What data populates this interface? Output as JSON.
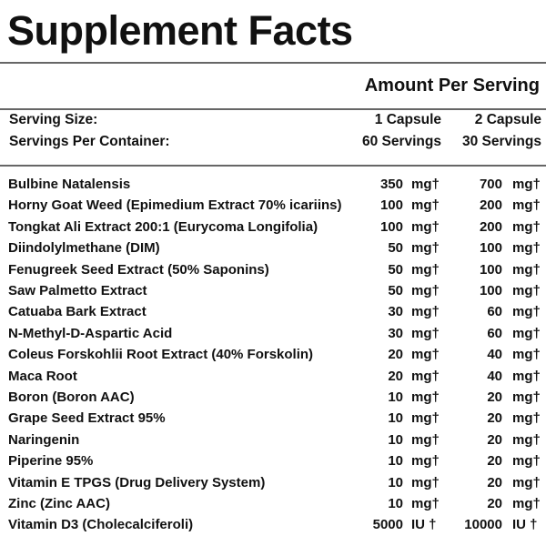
{
  "title": "Supplement Facts",
  "amount_header": "Amount Per Serving",
  "serving_size": {
    "label": "Serving Size:",
    "col1": "1 Capsule",
    "col2": "2 Capsule"
  },
  "servings_per_container": {
    "label": "Servings Per Container:",
    "col1": "60 Servings",
    "col2": "30 Servings"
  },
  "ingredients": [
    {
      "name": "Bulbine Natalensis",
      "a1": "350",
      "u1": "mg†",
      "a2": "700",
      "u2": "mg†"
    },
    {
      "name": "Horny Goat Weed (Epimedium Extract 70% icariins)",
      "a1": "100",
      "u1": "mg†",
      "a2": "200",
      "u2": "mg†"
    },
    {
      "name": "Tongkat Ali Extract 200:1 (Eurycoma Longifolia)",
      "a1": "100",
      "u1": "mg†",
      "a2": "200",
      "u2": "mg†"
    },
    {
      "name": "Diindolylmethane (DIM)",
      "a1": "50",
      "u1": "mg†",
      "a2": "100",
      "u2": "mg†"
    },
    {
      "name": "Fenugreek Seed Extract (50% Saponins)",
      "a1": "50",
      "u1": "mg†",
      "a2": "100",
      "u2": "mg†"
    },
    {
      "name": "Saw Palmetto Extract",
      "a1": "50",
      "u1": "mg†",
      "a2": "100",
      "u2": "mg†"
    },
    {
      "name": "Catuaba Bark Extract",
      "a1": "30",
      "u1": "mg†",
      "a2": "60",
      "u2": "mg†"
    },
    {
      "name": "N-Methyl-D-Aspartic Acid",
      "a1": "30",
      "u1": "mg†",
      "a2": "60",
      "u2": "mg†"
    },
    {
      "name": "Coleus Forskohlii Root Extract (40% Forskolin)",
      "a1": "20",
      "u1": "mg†",
      "a2": "40",
      "u2": "mg†"
    },
    {
      "name": "Maca Root",
      "a1": "20",
      "u1": "mg†",
      "a2": "40",
      "u2": "mg†"
    },
    {
      "name": "Boron (Boron AAC)",
      "a1": "10",
      "u1": "mg†",
      "a2": "20",
      "u2": "mg†"
    },
    {
      "name": "Grape Seed Extract 95%",
      "a1": "10",
      "u1": "mg†",
      "a2": "20",
      "u2": "mg†"
    },
    {
      "name": "Naringenin",
      "a1": "10",
      "u1": "mg†",
      "a2": "20",
      "u2": "mg†"
    },
    {
      "name": "Piperine 95%",
      "a1": "10",
      "u1": "mg†",
      "a2": "20",
      "u2": "mg†"
    },
    {
      "name": "Vitamin E TPGS (Drug Delivery System)",
      "a1": "10",
      "u1": "mg†",
      "a2": "20",
      "u2": "mg†"
    },
    {
      "name": "Zinc (Zinc AAC)",
      "a1": "10",
      "u1": "mg†",
      "a2": "20",
      "u2": "mg†"
    },
    {
      "name": "Vitamin D3 (Cholecalciferoli)",
      "a1": "5000",
      "u1": "IU †",
      "a2": "10000",
      "u2": "IU †"
    }
  ]
}
